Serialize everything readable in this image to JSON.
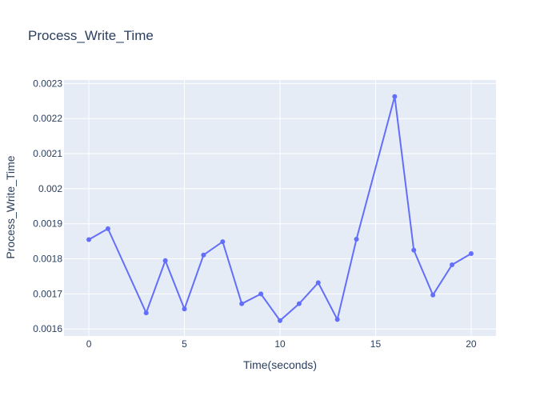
{
  "chart_data": {
    "type": "line",
    "title": "Process_Write_Time",
    "xlabel": "Time(seconds)",
    "ylabel": "Process_Write_Time",
    "xlim": [
      -1.3,
      21.3
    ],
    "ylim": [
      0.00158,
      0.00231
    ],
    "x_ticks": [
      0,
      5,
      10,
      15,
      20
    ],
    "x_tick_labels": [
      "0",
      "5",
      "10",
      "15",
      "20"
    ],
    "y_ticks": [
      0.0016,
      0.0017,
      0.0018,
      0.0019,
      0.002,
      0.0021,
      0.0022,
      0.0023
    ],
    "y_tick_labels": [
      "0.0016",
      "0.0017",
      "0.0018",
      "0.0019",
      "0.002",
      "0.0021",
      "0.0022",
      "0.0023"
    ],
    "grid": true,
    "colors": {
      "line": "#636efa",
      "plot_bg": "#e5ecf6",
      "grid": "#ffffff"
    },
    "series": [
      {
        "x": [
          0,
          1,
          3,
          4,
          5,
          6,
          7,
          8,
          9,
          10,
          11,
          12,
          13,
          14,
          16,
          17,
          18,
          19,
          20
        ],
        "y": [
          0.001855,
          0.001886,
          0.001646,
          0.001795,
          0.001657,
          0.001811,
          0.001849,
          0.001672,
          0.0017,
          0.001624,
          0.001672,
          0.001732,
          0.001627,
          0.001856,
          0.002263,
          0.001825,
          0.001697,
          0.001783,
          0.001815
        ]
      }
    ]
  }
}
